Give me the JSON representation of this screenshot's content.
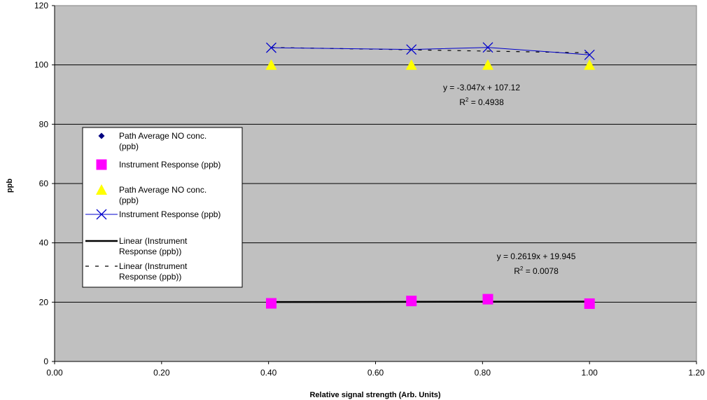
{
  "chart_data": {
    "type": "scatter",
    "title": "",
    "xlabel": "Relative signal strength (Arb. Units)",
    "ylabel": "ppb",
    "xlim": [
      0,
      1.2
    ],
    "ylim": [
      0,
      120
    ],
    "x_ticks": [
      "0.00",
      "0.20",
      "0.40",
      "0.60",
      "0.80",
      "1.00",
      "1.20"
    ],
    "y_ticks": [
      "0",
      "20",
      "40",
      "60",
      "80",
      "100",
      "120"
    ],
    "grid": "horizontal major gridlines",
    "plot_background": "#c0c0c0",
    "legend_position": "left",
    "series": [
      {
        "name": "Path Average NO conc. (ppb)",
        "marker": "diamond",
        "color": "#000080",
        "line": false,
        "x": [],
        "y": []
      },
      {
        "name": "Instrument Response (ppb)",
        "marker": "square",
        "color": "#ff00ff",
        "line": false,
        "x": [
          0.405,
          0.667,
          0.81,
          1.0
        ],
        "y": [
          19.6,
          20.4,
          21.0,
          19.5
        ]
      },
      {
        "name": "Path Average NO conc. (ppb)",
        "marker": "triangle",
        "color": "#ffff00",
        "line": false,
        "x": [
          0.405,
          0.667,
          0.81,
          1.0
        ],
        "y": [
          100,
          100,
          100,
          100
        ]
      },
      {
        "name": "Instrument Response (ppb)",
        "marker": "x",
        "color": "#0000cc",
        "line": true,
        "x": [
          0.405,
          0.667,
          0.81,
          1.0
        ],
        "y": [
          105.8,
          105.2,
          105.9,
          103.4
        ]
      }
    ],
    "trendlines": [
      {
        "name": "Linear (Instrument Response (ppb))",
        "style": "solid",
        "color": "#000000",
        "slope": 0.2619,
        "intercept": 19.945,
        "x_range": [
          0.405,
          1.0
        ],
        "equation": "y = 0.2619x + 19.945",
        "r2_value": "0.0078"
      },
      {
        "name": "Linear (Instrument Response (ppb))",
        "style": "dashed",
        "color": "#000000",
        "slope": -3.047,
        "intercept": 107.12,
        "x_range": [
          0.405,
          1.0
        ],
        "equation": "y = -3.047x + 107.12",
        "r2_value": "0.4938"
      }
    ],
    "r2_prefix": "R",
    "r2_sup": "2",
    "r2_suffix": " = "
  }
}
